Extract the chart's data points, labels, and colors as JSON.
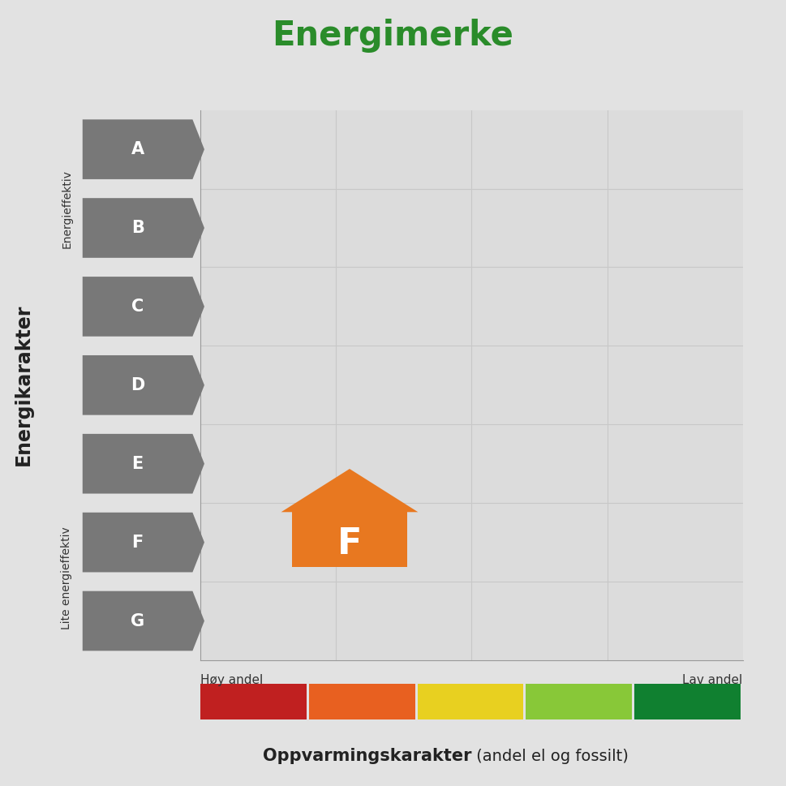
{
  "title": "Energimerke",
  "title_color": "#2a8c2a",
  "title_fontsize": 30,
  "background_color": "#e2e2e2",
  "plot_bg_color": "#dcdcdc",
  "ylabel": "Energikarakter",
  "ylabel_fontsize": 17,
  "xlabel": "Oppvarmingskarakter",
  "xlabel_bold": true,
  "xlabel_suffix": " (andel el og fossilt)",
  "xlabel_fontsize": 15,
  "y_top_label": "Energieffektiv",
  "y_bottom_label": "Lite energieffektiv",
  "x_left_label": "Høy andel",
  "x_right_label": "Lav andel",
  "energy_labels": [
    "A",
    "B",
    "C",
    "D",
    "E",
    "F",
    "G"
  ],
  "arrow_color": "#787878",
  "arrow_text_color": "#ffffff",
  "house_color": "#e87820",
  "house_label": "F",
  "color_bar_segments": [
    "#c02020",
    "#e86020",
    "#e8d020",
    "#88c838",
    "#108030"
  ],
  "grid_color": "#c8c8c8",
  "num_rows": 7,
  "num_cols": 4,
  "arrow_label_fontsize": 15
}
